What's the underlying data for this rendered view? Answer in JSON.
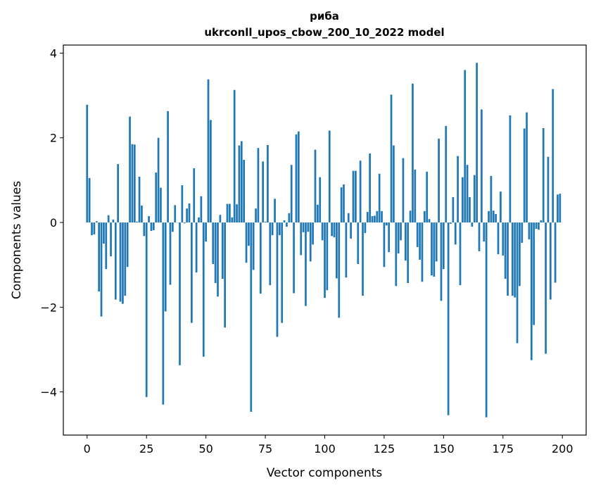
{
  "chart_data": {
    "type": "bar",
    "title_line1": "риба",
    "title_line2": "ukrconll_upos_cbow_200_10_2022 model",
    "xlabel": "Vector components",
    "ylabel": "Components values",
    "xlim": [
      -10,
      210
    ],
    "ylim": [
      -5.02,
      4.19
    ],
    "xticks": [
      0,
      25,
      50,
      75,
      100,
      125,
      150,
      175,
      200
    ],
    "xtick_labels": [
      "0",
      "25",
      "50",
      "75",
      "100",
      "125",
      "150",
      "175",
      "200"
    ],
    "yticks": [
      -4,
      -2,
      0,
      2,
      4
    ],
    "ytick_labels": [
      "−4",
      "−2",
      "0",
      "2",
      "4"
    ],
    "grid": false,
    "bar_color": "#1f77b4",
    "values": [
      2.78,
      1.05,
      -0.3,
      -0.28,
      0.03,
      -1.63,
      -2.22,
      -0.5,
      -1.1,
      0.17,
      -0.8,
      0.07,
      -1.82,
      1.38,
      -1.87,
      -1.92,
      -1.73,
      -1.05,
      2.5,
      1.85,
      1.84,
      0.02,
      1.08,
      0.4,
      -0.32,
      -4.12,
      0.15,
      -0.2,
      -0.18,
      1.18,
      2.0,
      0.82,
      -4.3,
      -2.1,
      2.63,
      -1.47,
      -0.22,
      0.41,
      0.0,
      -3.37,
      0.88,
      -0.02,
      0.33,
      0.45,
      -2.37,
      1.28,
      -1.18,
      0.12,
      0.62,
      -3.17,
      -0.45,
      3.38,
      2.42,
      -0.98,
      -1.43,
      -1.75,
      0.18,
      -1.33,
      -2.48,
      0.44,
      0.44,
      0.12,
      3.13,
      0.43,
      1.82,
      1.92,
      1.48,
      -0.95,
      -0.55,
      -4.47,
      -1.12,
      0.33,
      1.76,
      -1.68,
      1.44,
      0.02,
      1.83,
      -1.48,
      -0.3,
      0.56,
      -2.7,
      -0.3,
      -2.37,
      0.05,
      -0.1,
      0.22,
      1.36,
      -1.67,
      2.08,
      2.15,
      -0.77,
      -0.23,
      -1.97,
      -0.22,
      -0.92,
      -0.52,
      1.72,
      0.42,
      1.07,
      -0.42,
      -1.78,
      -1.6,
      2.17,
      -0.32,
      -0.35,
      -1.32,
      -2.25,
      0.83,
      0.9,
      -1.3,
      0.22,
      -0.38,
      1.22,
      1.22,
      -0.98,
      1.46,
      -1.73,
      -0.25,
      0.25,
      1.63,
      0.15,
      0.16,
      0.27,
      1.15,
      0.27,
      -1.05,
      -0.07,
      -0.7,
      3.02,
      1.82,
      -1.5,
      -0.73,
      -0.42,
      1.52,
      -0.9,
      -1.43,
      0.28,
      3.28,
      1.25,
      -0.58,
      -0.88,
      -1.4,
      0.27,
      1.2,
      0.08,
      -1.25,
      -1.28,
      -0.92,
      1.98,
      -1.85,
      -1.1,
      2.28,
      -4.55,
      -0.03,
      0.6,
      -0.52,
      1.57,
      -1.48,
      1.07,
      3.6,
      1.36,
      0.6,
      -0.1,
      1.12,
      3.77,
      -0.68,
      2.67,
      -0.45,
      -4.6,
      0.27,
      1.1,
      0.28,
      0.2,
      -0.75,
      0.73,
      -0.78,
      -1.33,
      -1.73,
      2.53,
      -1.73,
      -1.77,
      -2.85,
      -1.5,
      -0.48,
      2.22,
      2.6,
      -0.4,
      -3.25,
      -2.42,
      -0.15,
      -0.17,
      0.05,
      2.23,
      -3.1,
      1.55,
      -1.82,
      3.15,
      -1.42,
      0.66,
      0.68
    ]
  }
}
